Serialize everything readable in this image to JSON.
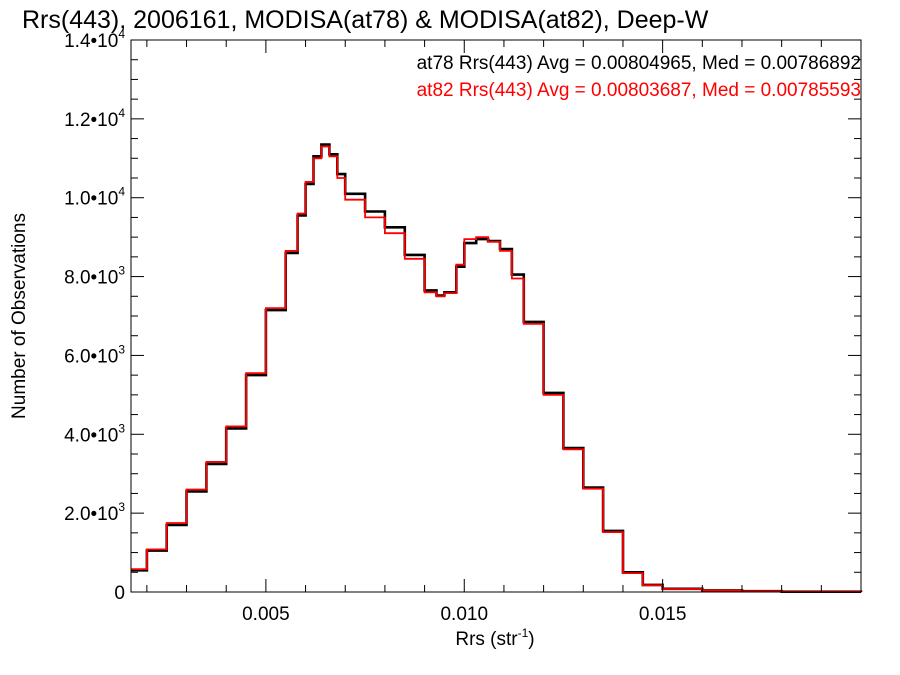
{
  "chart_data": {
    "type": "histogram",
    "title": "Rrs(443), 2006161, MODISA(at78) & MODISA(at82), Deep-W",
    "xlabel": "Rrs (str",
    "xlabel_sup": "-1",
    "xlabel_tail": ")",
    "ylabel": "Number of Observations",
    "xlim": [
      0.0016,
      0.02
    ],
    "ylim": [
      0,
      14000
    ],
    "x_ticks": [
      {
        "value": 0.005,
        "label": "0.005"
      },
      {
        "value": 0.01,
        "label": "0.010"
      },
      {
        "value": 0.015,
        "label": "0.015"
      }
    ],
    "y_ticks": [
      {
        "value": 0,
        "label": "0",
        "sup": ""
      },
      {
        "value": 2000,
        "label": "2.0•10",
        "sup": "3"
      },
      {
        "value": 4000,
        "label": "4.0•10",
        "sup": "3"
      },
      {
        "value": 6000,
        "label": "6.0•10",
        "sup": "3"
      },
      {
        "value": 8000,
        "label": "8.0•10",
        "sup": "3"
      },
      {
        "value": 10000,
        "label": "1.0•10",
        "sup": "4"
      },
      {
        "value": 12000,
        "label": "1.2•10",
        "sup": "4"
      },
      {
        "value": 14000,
        "label": "1.4•10",
        "sup": "4"
      }
    ],
    "legend_placement": "top-right",
    "series": [
      {
        "name": "at78 Rrs(443) Avg = 0.00804965, Med = 0.00786892",
        "color": "#000000",
        "x": [
          0.0016,
          0.002,
          0.0025,
          0.003,
          0.0035,
          0.004,
          0.0045,
          0.005,
          0.0055,
          0.0058,
          0.006,
          0.0062,
          0.0064,
          0.0066,
          0.0068,
          0.007,
          0.0075,
          0.008,
          0.0085,
          0.009,
          0.0093,
          0.0095,
          0.0098,
          0.01,
          0.0103,
          0.0106,
          0.0109,
          0.0112,
          0.0115,
          0.012,
          0.0125,
          0.013,
          0.0135,
          0.014,
          0.0145,
          0.015,
          0.016,
          0.017,
          0.018,
          0.02
        ],
        "y": [
          550,
          1050,
          1700,
          2550,
          3250,
          4150,
          5500,
          7150,
          8600,
          9550,
          10350,
          11050,
          11350,
          11100,
          10600,
          10100,
          9650,
          9250,
          8550,
          7650,
          7520,
          7600,
          8250,
          8850,
          8950,
          8900,
          8700,
          8050,
          6850,
          5050,
          3650,
          2650,
          1550,
          500,
          180,
          80,
          40,
          20,
          8,
          0
        ]
      },
      {
        "name": "at82 Rrs(443) Avg = 0.00803687, Med = 0.00785593",
        "color": "#ff0000",
        "x": [
          0.0016,
          0.002,
          0.0025,
          0.003,
          0.0035,
          0.004,
          0.0045,
          0.005,
          0.0055,
          0.0058,
          0.006,
          0.0062,
          0.0064,
          0.0066,
          0.0068,
          0.007,
          0.0075,
          0.008,
          0.0085,
          0.009,
          0.0093,
          0.0095,
          0.0098,
          0.01,
          0.0103,
          0.0106,
          0.0109,
          0.0112,
          0.0115,
          0.012,
          0.0125,
          0.013,
          0.0135,
          0.014,
          0.0145,
          0.015,
          0.016,
          0.017,
          0.018,
          0.02
        ],
        "y": [
          580,
          1080,
          1750,
          2600,
          3300,
          4200,
          5550,
          7200,
          8650,
          9600,
          10400,
          11000,
          11300,
          11050,
          10500,
          9950,
          9500,
          9100,
          8450,
          7600,
          7500,
          7580,
          8300,
          8950,
          9000,
          8880,
          8650,
          7950,
          6800,
          5000,
          3620,
          2620,
          1520,
          480,
          170,
          75,
          38,
          18,
          7,
          0
        ]
      }
    ]
  }
}
